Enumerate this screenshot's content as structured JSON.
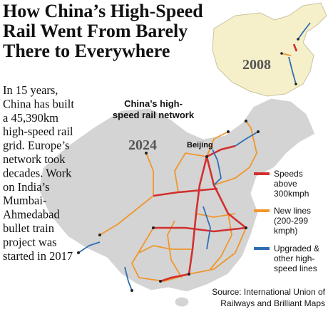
{
  "title": {
    "lines": [
      "How China’s High-Speed",
      "Rail Went From Barely",
      "There to Everywhere"
    ]
  },
  "inset": {
    "year": "2008"
  },
  "body": {
    "lines": [
      "In 15 years,",
      "China has built",
      "a 45,390km",
      "high-speed rail",
      "grid. Europe’s",
      "network took",
      "decades. Work",
      "on India’s",
      "Mumbai-",
      "Ahmedabad",
      "bullet train",
      "project was",
      "started in 2017"
    ]
  },
  "map": {
    "title_lines": [
      "China’s high-",
      "speed rail network"
    ],
    "year": "2024",
    "city": "Beijing"
  },
  "legend": {
    "items": [
      {
        "color": "#d32f2f",
        "lines": [
          "Speeds",
          "above",
          "300kmph"
        ]
      },
      {
        "color": "#f0962c",
        "lines": [
          "New lines",
          "(200-299",
          "kmph)"
        ]
      },
      {
        "color": "#2f6db5",
        "lines": [
          "Upgraded &",
          "other high-",
          "speed lines"
        ]
      }
    ]
  },
  "source": {
    "lines": [
      "Source: International Union of",
      "Railways and Brilliant Maps"
    ]
  }
}
